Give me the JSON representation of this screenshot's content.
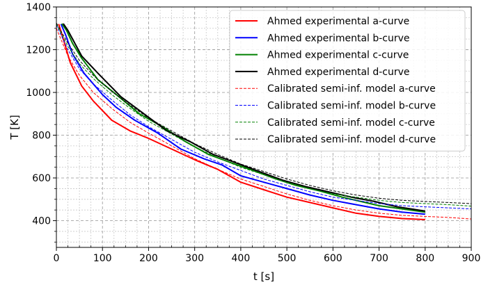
{
  "chart_data": {
    "type": "line",
    "title": "",
    "xlabel": "t [s]",
    "ylabel": "T [K]",
    "xlim": [
      0,
      900
    ],
    "ylim": [
      275,
      1400
    ],
    "x_ticks": [
      "0",
      "100",
      "200",
      "300",
      "400",
      "500",
      "600",
      "700",
      "800",
      "900"
    ],
    "y_ticks": [
      "400",
      "600",
      "800",
      "1000",
      "1200",
      "1400"
    ],
    "grid": true,
    "minor_grid": true,
    "legend_position": "top-right",
    "series": [
      {
        "name": "Ahmed experimental a-curve",
        "color": "#ff0000",
        "style": "solid",
        "points": [
          [
            5,
            1320
          ],
          [
            15,
            1250
          ],
          [
            30,
            1140
          ],
          [
            55,
            1030
          ],
          [
            80,
            960
          ],
          [
            120,
            870
          ],
          [
            160,
            820
          ],
          [
            200,
            785
          ],
          [
            250,
            735
          ],
          [
            300,
            685
          ],
          [
            350,
            640
          ],
          [
            400,
            580
          ],
          [
            450,
            545
          ],
          [
            500,
            510
          ],
          [
            550,
            485
          ],
          [
            600,
            460
          ],
          [
            650,
            435
          ],
          [
            700,
            420
          ],
          [
            750,
            410
          ],
          [
            800,
            405
          ]
        ]
      },
      {
        "name": "Ahmed experimental b-curve",
        "color": "#0000ff",
        "style": "solid",
        "points": [
          [
            10,
            1320
          ],
          [
            20,
            1270
          ],
          [
            35,
            1180
          ],
          [
            60,
            1090
          ],
          [
            100,
            990
          ],
          [
            130,
            930
          ],
          [
            170,
            870
          ],
          [
            220,
            810
          ],
          [
            270,
            735
          ],
          [
            320,
            690
          ],
          [
            360,
            660
          ],
          [
            400,
            610
          ],
          [
            450,
            580
          ],
          [
            500,
            550
          ],
          [
            550,
            520
          ],
          [
            600,
            495
          ],
          [
            650,
            475
          ],
          [
            700,
            455
          ],
          [
            750,
            440
          ],
          [
            800,
            430
          ]
        ]
      },
      {
        "name": "Ahmed experimental c-curve",
        "color": "#008000",
        "style": "solid",
        "points": [
          [
            12,
            1322
          ],
          [
            22,
            1290
          ],
          [
            35,
            1230
          ],
          [
            55,
            1160
          ],
          [
            90,
            1060
          ],
          [
            130,
            990
          ],
          [
            180,
            900
          ],
          [
            230,
            840
          ],
          [
            280,
            770
          ],
          [
            330,
            710
          ],
          [
            380,
            670
          ],
          [
            420,
            640
          ],
          [
            470,
            600
          ],
          [
            520,
            565
          ],
          [
            570,
            540
          ],
          [
            620,
            510
          ],
          [
            670,
            485
          ],
          [
            700,
            470
          ],
          [
            750,
            455
          ],
          [
            800,
            440
          ]
        ]
      },
      {
        "name": "Ahmed experimental d-curve",
        "color": "#000000",
        "style": "solid",
        "points": [
          [
            15,
            1322
          ],
          [
            25,
            1290
          ],
          [
            35,
            1250
          ],
          [
            55,
            1170
          ],
          [
            90,
            1090
          ],
          [
            140,
            980
          ],
          [
            190,
            900
          ],
          [
            240,
            820
          ],
          [
            290,
            770
          ],
          [
            340,
            710
          ],
          [
            390,
            670
          ],
          [
            440,
            630
          ],
          [
            490,
            590
          ],
          [
            540,
            560
          ],
          [
            590,
            535
          ],
          [
            640,
            510
          ],
          [
            690,
            490
          ],
          [
            740,
            465
          ],
          [
            800,
            445
          ]
        ]
      },
      {
        "name": "Calibrated semi-inf. model a-curve",
        "color": "#ff0000",
        "style": "dashed",
        "points": [
          [
            0,
            1300
          ],
          [
            25,
            1170
          ],
          [
            50,
            1080
          ],
          [
            80,
            1000
          ],
          [
            120,
            925
          ],
          [
            160,
            860
          ],
          [
            200,
            810
          ],
          [
            250,
            750
          ],
          [
            300,
            690
          ],
          [
            350,
            640
          ],
          [
            400,
            595
          ],
          [
            450,
            560
          ],
          [
            500,
            525
          ],
          [
            550,
            495
          ],
          [
            600,
            470
          ],
          [
            650,
            450
          ],
          [
            700,
            435
          ],
          [
            750,
            425
          ],
          [
            800,
            420
          ],
          [
            850,
            415
          ],
          [
            900,
            408
          ]
        ]
      },
      {
        "name": "Calibrated semi-inf. model b-curve",
        "color": "#0000ff",
        "style": "dashed",
        "points": [
          [
            0,
            1315
          ],
          [
            25,
            1200
          ],
          [
            50,
            1110
          ],
          [
            80,
            1040
          ],
          [
            120,
            965
          ],
          [
            160,
            895
          ],
          [
            200,
            840
          ],
          [
            250,
            780
          ],
          [
            300,
            720
          ],
          [
            350,
            675
          ],
          [
            400,
            635
          ],
          [
            450,
            595
          ],
          [
            500,
            565
          ],
          [
            550,
            535
          ],
          [
            600,
            510
          ],
          [
            650,
            495
          ],
          [
            700,
            480
          ],
          [
            750,
            470
          ],
          [
            800,
            465
          ],
          [
            850,
            460
          ],
          [
            900,
            455
          ]
        ]
      },
      {
        "name": "Calibrated semi-inf. model c-curve",
        "color": "#008000",
        "style": "dashed",
        "points": [
          [
            0,
            1320
          ],
          [
            25,
            1215
          ],
          [
            50,
            1135
          ],
          [
            80,
            1065
          ],
          [
            120,
            990
          ],
          [
            160,
            925
          ],
          [
            200,
            865
          ],
          [
            250,
            805
          ],
          [
            300,
            745
          ],
          [
            350,
            695
          ],
          [
            400,
            650
          ],
          [
            450,
            615
          ],
          [
            500,
            580
          ],
          [
            550,
            550
          ],
          [
            600,
            525
          ],
          [
            650,
            510
          ],
          [
            700,
            495
          ],
          [
            750,
            485
          ],
          [
            800,
            480
          ],
          [
            850,
            475
          ],
          [
            900,
            468
          ]
        ]
      },
      {
        "name": "Calibrated semi-inf. model d-curve",
        "color": "#000000",
        "style": "dashed",
        "points": [
          [
            0,
            1325
          ],
          [
            25,
            1230
          ],
          [
            50,
            1150
          ],
          [
            80,
            1080
          ],
          [
            120,
            1005
          ],
          [
            160,
            940
          ],
          [
            200,
            880
          ],
          [
            250,
            820
          ],
          [
            300,
            760
          ],
          [
            350,
            710
          ],
          [
            400,
            665
          ],
          [
            450,
            630
          ],
          [
            500,
            595
          ],
          [
            550,
            565
          ],
          [
            600,
            540
          ],
          [
            650,
            520
          ],
          [
            700,
            505
          ],
          [
            750,
            495
          ],
          [
            800,
            490
          ],
          [
            850,
            485
          ],
          [
            900,
            480
          ]
        ]
      }
    ]
  }
}
